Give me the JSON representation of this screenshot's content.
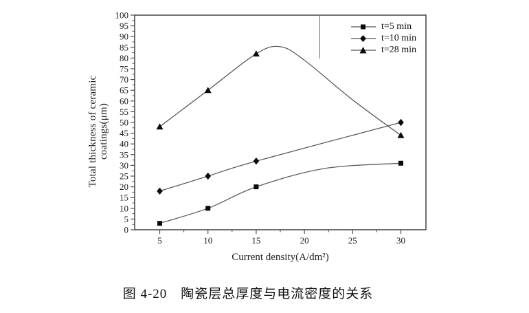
{
  "figure": {
    "caption": "图 4-20　陶瓷层总厚度与电流密度的关系"
  },
  "chart_data": {
    "type": "line",
    "title": "",
    "xlabel": "Current density(A/dm²)",
    "ylabel": "Total thickness of ceramic coatings(μm)",
    "ylabel_lines": [
      "Total thickness of ceramic",
      "coatings(μm)"
    ],
    "xlim": [
      2.4,
      32.6
    ],
    "ylim": [
      0,
      100
    ],
    "x_major_ticks": [
      5,
      10,
      15,
      20,
      25,
      30
    ],
    "x_minor_ticks": [
      7.5,
      12.5,
      17.5,
      22.5,
      27.5
    ],
    "y_major_tick_step": 5,
    "y_minor_tick_step": 2.5,
    "grid": false,
    "x": [
      5,
      10,
      15,
      30
    ],
    "series": [
      {
        "name": "t=5 min",
        "marker": "square",
        "values": [
          3,
          10,
          20,
          31
        ],
        "curve_through": [
          [
            5,
            3
          ],
          [
            10,
            10
          ],
          [
            15,
            20
          ],
          [
            22,
            28.5
          ],
          [
            30,
            31
          ]
        ]
      },
      {
        "name": "t=10 min",
        "marker": "diamond",
        "values": [
          18,
          25,
          32,
          50
        ],
        "curve_through": [
          [
            5,
            18
          ],
          [
            10,
            25
          ],
          [
            15,
            32
          ],
          [
            30,
            50
          ]
        ]
      },
      {
        "name": "t=28 min",
        "marker": "triangle",
        "values": [
          48,
          65,
          82,
          44
        ],
        "curve_through": [
          [
            5,
            48
          ],
          [
            10,
            65
          ],
          [
            15,
            82
          ],
          [
            17.5,
            85.3
          ],
          [
            20,
            79
          ],
          [
            25,
            60.5
          ],
          [
            30,
            44
          ]
        ]
      }
    ],
    "legend": {
      "position": "top-right",
      "entries": [
        "t=5 min",
        "t=10 min",
        "t=28 min"
      ]
    },
    "colors": {
      "line": "#5c5c5c",
      "marker": "#0b0b0b",
      "frame": "#4d4d4d",
      "text": "#1a1a1a",
      "background": "#ffffff"
    }
  }
}
